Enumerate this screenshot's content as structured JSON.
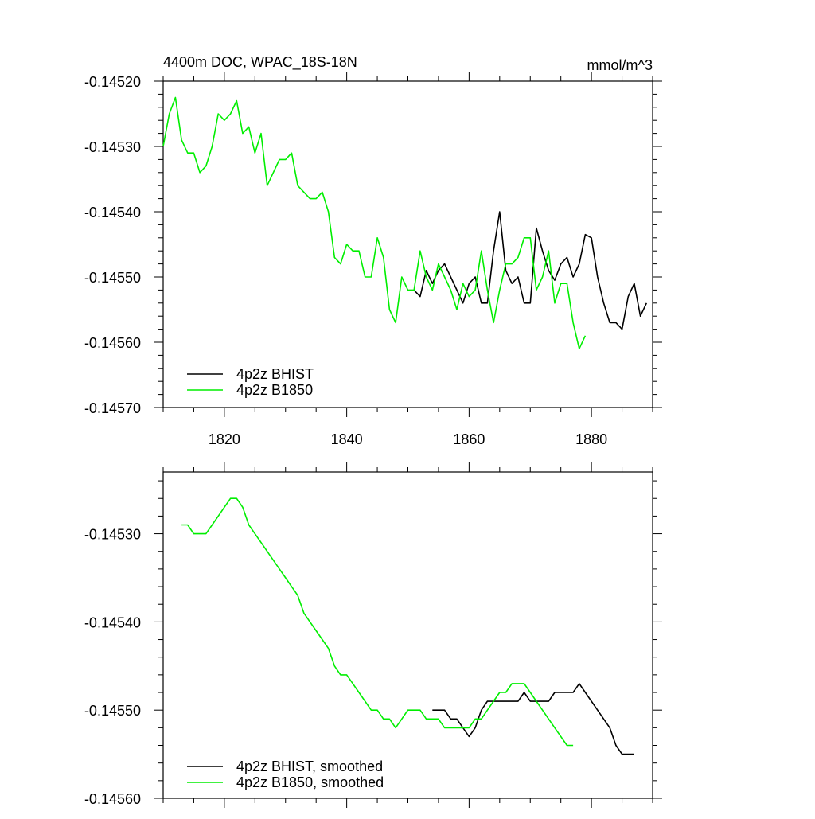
{
  "chart_data": [
    {
      "type": "line",
      "title_left": "4400m DOC, WPAC_18S-18N",
      "title_right": "mmol/m^3",
      "xlim": [
        1810,
        1890
      ],
      "ylim": [
        -0.1457,
        -0.1452
      ],
      "xticks": [
        1820,
        1840,
        1860,
        1880
      ],
      "xticklabels": [
        "1820",
        "1840",
        "1860",
        "1880"
      ],
      "yticks": [
        -0.1452,
        -0.1453,
        -0.1454,
        -0.1455,
        -0.1456,
        -0.1457
      ],
      "yticklabels": [
        "-0.14520",
        "-0.14530",
        "-0.14540",
        "-0.14550",
        "-0.14560",
        "-0.14570"
      ],
      "series": [
        {
          "name": "4p2z BHIST",
          "color": "#000000",
          "x": [
            1851,
            1852,
            1853,
            1854,
            1855,
            1856,
            1857,
            1858,
            1859,
            1860,
            1861,
            1862,
            1863,
            1864,
            1865,
            1866,
            1867,
            1868,
            1869,
            1870,
            1871,
            1872,
            1873,
            1874,
            1875,
            1876,
            1877,
            1878,
            1879,
            1880,
            1881,
            1882,
            1883,
            1884,
            1885,
            1886,
            1887,
            1888,
            1889
          ],
          "values": [
            -0.14552,
            -0.14553,
            -0.14549,
            -0.14551,
            -0.14549,
            -0.14548,
            -0.1455,
            -0.14552,
            -0.14554,
            -0.14551,
            -0.1455,
            -0.14554,
            -0.14554,
            -0.14546,
            -0.1454,
            -0.14549,
            -0.14551,
            -0.1455,
            -0.14554,
            -0.14554,
            -0.145425,
            -0.14546,
            -0.14549,
            -0.145505,
            -0.14548,
            -0.14547,
            -0.1455,
            -0.14548,
            -0.145435,
            -0.14544,
            -0.1455,
            -0.14554,
            -0.14557,
            -0.14557,
            -0.14558,
            -0.14553,
            -0.14551,
            -0.14556,
            -0.14554
          ]
        },
        {
          "name": "4p2z B1850",
          "color": "#00ee00",
          "x": [
            1810,
            1811,
            1812,
            1813,
            1814,
            1815,
            1816,
            1817,
            1818,
            1819,
            1820,
            1821,
            1822,
            1823,
            1824,
            1825,
            1826,
            1827,
            1828,
            1829,
            1830,
            1831,
            1832,
            1833,
            1834,
            1835,
            1836,
            1837,
            1838,
            1839,
            1840,
            1841,
            1842,
            1843,
            1844,
            1845,
            1846,
            1847,
            1848,
            1849,
            1850,
            1851,
            1852,
            1853,
            1854,
            1855,
            1856,
            1857,
            1858,
            1859,
            1860,
            1861,
            1862,
            1863,
            1864,
            1865,
            1866,
            1867,
            1868,
            1869,
            1870,
            1871,
            1872,
            1873,
            1874,
            1875,
            1876,
            1877,
            1878,
            1879
          ],
          "values": [
            -0.1453,
            -0.14525,
            -0.145225,
            -0.14529,
            -0.14531,
            -0.14531,
            -0.14534,
            -0.14533,
            -0.1453,
            -0.14525,
            -0.14526,
            -0.14525,
            -0.14523,
            -0.14528,
            -0.14527,
            -0.14531,
            -0.14528,
            -0.14536,
            -0.14534,
            -0.14532,
            -0.14532,
            -0.14531,
            -0.14536,
            -0.14537,
            -0.14538,
            -0.14538,
            -0.14537,
            -0.1454,
            -0.14547,
            -0.14548,
            -0.14545,
            -0.14546,
            -0.14546,
            -0.1455,
            -0.1455,
            -0.14544,
            -0.14547,
            -0.14555,
            -0.14557,
            -0.1455,
            -0.14552,
            -0.14552,
            -0.14546,
            -0.1455,
            -0.14552,
            -0.14548,
            -0.1455,
            -0.14552,
            -0.14555,
            -0.14551,
            -0.14553,
            -0.14552,
            -0.14546,
            -0.14552,
            -0.14557,
            -0.14552,
            -0.14548,
            -0.14548,
            -0.14547,
            -0.14544,
            -0.14544,
            -0.14552,
            -0.1455,
            -0.14546,
            -0.14554,
            -0.14551,
            -0.14551,
            -0.14557,
            -0.14561,
            -0.14559
          ]
        }
      ]
    },
    {
      "type": "line",
      "xlim": [
        1810,
        1890
      ],
      "ylim": [
        -0.1456,
        -0.14523
      ],
      "xticks": [
        1820,
        1840,
        1860,
        1880
      ],
      "xticklabels": [],
      "yticks": [
        -0.1453,
        -0.1454,
        -0.1455,
        -0.1456
      ],
      "yticklabels": [
        "-0.14530",
        "-0.14540",
        "-0.14550",
        "-0.14560"
      ],
      "series": [
        {
          "name": "4p2z BHIST, smoothed",
          "color": "#000000",
          "x": [
            1854,
            1855,
            1856,
            1857,
            1858,
            1859,
            1860,
            1861,
            1862,
            1863,
            1864,
            1865,
            1866,
            1867,
            1868,
            1869,
            1870,
            1871,
            1872,
            1873,
            1874,
            1875,
            1876,
            1877,
            1878,
            1879,
            1880,
            1881,
            1882,
            1883,
            1884,
            1885,
            1886,
            1887
          ],
          "values": [
            -0.1455,
            -0.1455,
            -0.1455,
            -0.14551,
            -0.14551,
            -0.14552,
            -0.14553,
            -0.14552,
            -0.1455,
            -0.14549,
            -0.14549,
            -0.14549,
            -0.14549,
            -0.14549,
            -0.14549,
            -0.14548,
            -0.14549,
            -0.14549,
            -0.14549,
            -0.14549,
            -0.14548,
            -0.14548,
            -0.14548,
            -0.14548,
            -0.14547,
            -0.14548,
            -0.14549,
            -0.1455,
            -0.14551,
            -0.14552,
            -0.14554,
            -0.14555,
            -0.14555,
            -0.14555
          ]
        },
        {
          "name": "4p2z B1850, smoothed",
          "color": "#00ee00",
          "x": [
            1813,
            1814,
            1815,
            1816,
            1817,
            1818,
            1819,
            1820,
            1821,
            1822,
            1823,
            1824,
            1825,
            1826,
            1827,
            1828,
            1829,
            1830,
            1831,
            1832,
            1833,
            1834,
            1835,
            1836,
            1837,
            1838,
            1839,
            1840,
            1841,
            1842,
            1843,
            1844,
            1845,
            1846,
            1847,
            1848,
            1849,
            1850,
            1851,
            1852,
            1853,
            1854,
            1855,
            1856,
            1857,
            1858,
            1859,
            1860,
            1861,
            1862,
            1863,
            1864,
            1865,
            1866,
            1867,
            1868,
            1869,
            1870,
            1871,
            1872,
            1873,
            1874,
            1875,
            1876,
            1877
          ],
          "values": [
            -0.14529,
            -0.14529,
            -0.1453,
            -0.1453,
            -0.1453,
            -0.14529,
            -0.14528,
            -0.14527,
            -0.14526,
            -0.14526,
            -0.14527,
            -0.14529,
            -0.1453,
            -0.14531,
            -0.14532,
            -0.14533,
            -0.14534,
            -0.14535,
            -0.14536,
            -0.14537,
            -0.14539,
            -0.1454,
            -0.14541,
            -0.14542,
            -0.14543,
            -0.14545,
            -0.14546,
            -0.14546,
            -0.14547,
            -0.14548,
            -0.14549,
            -0.1455,
            -0.1455,
            -0.14551,
            -0.14551,
            -0.14552,
            -0.14551,
            -0.1455,
            -0.1455,
            -0.1455,
            -0.14551,
            -0.14551,
            -0.14551,
            -0.14552,
            -0.14552,
            -0.14552,
            -0.14552,
            -0.14552,
            -0.14551,
            -0.14551,
            -0.1455,
            -0.14549,
            -0.14548,
            -0.14548,
            -0.14547,
            -0.14547,
            -0.14547,
            -0.14548,
            -0.14549,
            -0.1455,
            -0.14551,
            -0.14552,
            -0.14553,
            -0.14554,
            -0.14554
          ]
        }
      ]
    }
  ]
}
